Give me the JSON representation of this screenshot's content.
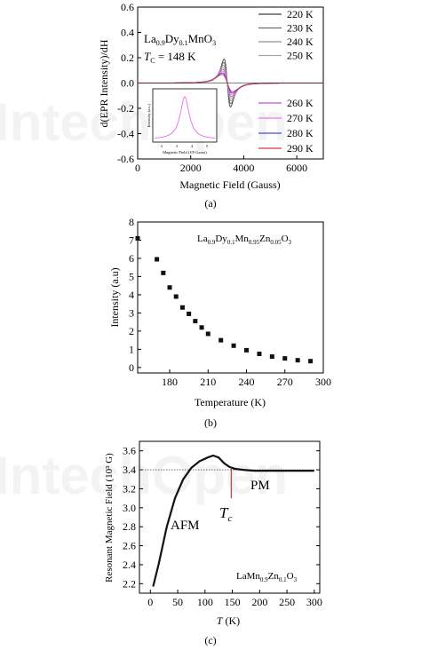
{
  "watermark": "IntechOpen",
  "colors": {
    "spectra": [
      "#404040",
      "#6d6d6d",
      "#8f8f8f",
      "#a8a8a8",
      "#c94fc9",
      "#e87be8",
      "#4a4adf",
      "#d43a3a"
    ],
    "inset": "#ee66ee",
    "markers": "#111111",
    "line": "#111111",
    "ref_line": "#555555",
    "tc_line": "#e03030"
  },
  "panels": {
    "a": {
      "caption": "(a)",
      "compound": {
        "base": "La",
        "sub1": "0.9",
        "mid": "Dy",
        "sub2": "0.1",
        "end": "MnO",
        "sub3": "3"
      },
      "tc_text": {
        "T": "T",
        "sub": "C",
        "rest": " = 148 K"
      },
      "legend_top": [
        "220 K",
        "230 K",
        "240 K",
        "250 K"
      ],
      "legend_bottom": [
        "260 K",
        "270 K",
        "280 K",
        "290 K"
      ],
      "inset": {
        "xlabel": "Magnetic Field (10³ Gauss)",
        "ylabel": "Intensity (a.u.)",
        "xticks": [
          "2",
          "3",
          "4",
          "5"
        ]
      }
    },
    "b": {
      "caption": "(b)",
      "compound": {
        "base": "La",
        "s1": "0.9",
        "e2": "Dy",
        "s2": "0.1",
        "e3": "Mn",
        "s3": "0.95",
        "e4": "Zn",
        "s4": "0.05",
        "e5": "O",
        "s5": "3"
      }
    },
    "c": {
      "caption": "(c)",
      "afm": "AFM",
      "pm": "PM",
      "tc_label": {
        "T": "T",
        "sub": "c"
      },
      "compound": {
        "base": "LaMn",
        "s1": "0.9",
        "e2": "Zn",
        "s2": "0.1",
        "e3": "O",
        "s3": "3"
      },
      "ylabel_units": "(10³ G)"
    }
  },
  "chart_data": [
    {
      "type": "line",
      "title": "",
      "xlabel": "Magnetic Field (Gauss)",
      "ylabel": "d(EPR Intensity)/dH",
      "xlim": [
        0,
        7000
      ],
      "ylim": [
        -0.6,
        0.6
      ],
      "xticks": [
        0,
        2000,
        4000,
        6000
      ],
      "yticks": [
        -0.6,
        -0.4,
        -0.2,
        0.0,
        0.2,
        0.4,
        0.6
      ],
      "legend": "right",
      "center_field": 3380,
      "series": [
        {
          "name": "220 K",
          "peak": 0.5,
          "width": 210
        },
        {
          "name": "230 K",
          "peak": 0.43,
          "width": 230
        },
        {
          "name": "240 K",
          "peak": 0.37,
          "width": 250
        },
        {
          "name": "250 K",
          "peak": 0.32,
          "width": 270
        },
        {
          "name": "260 K",
          "peak": 0.28,
          "width": 290
        },
        {
          "name": "270 K",
          "peak": 0.24,
          "width": 310
        },
        {
          "name": "280 K",
          "peak": 0.21,
          "width": 330
        },
        {
          "name": "290 K",
          "peak": 0.18,
          "width": 350
        }
      ]
    },
    {
      "type": "scatter",
      "title": "",
      "xlabel": "Temperature (K)",
      "ylabel": "Intensity (a.u)",
      "xlim": [
        155,
        300
      ],
      "ylim": [
        -0.3,
        8
      ],
      "xticks": [
        180,
        210,
        240,
        270,
        300
      ],
      "yticks": [
        0,
        1,
        2,
        3,
        4,
        5,
        6,
        7,
        8
      ],
      "x": [
        155,
        170,
        175,
        180,
        185,
        190,
        195,
        200,
        205,
        210,
        220,
        230,
        240,
        250,
        260,
        270,
        280,
        290
      ],
      "y": [
        7.1,
        5.95,
        5.2,
        4.4,
        3.9,
        3.3,
        2.95,
        2.55,
        2.2,
        1.85,
        1.5,
        1.2,
        0.95,
        0.75,
        0.6,
        0.5,
        0.4,
        0.35
      ]
    },
    {
      "type": "line",
      "title": "",
      "xlabel": "T (K)",
      "ylabel": "Resonant Magnetic Field (10³ G)",
      "xlim": [
        -20,
        310
      ],
      "ylim": [
        2.1,
        3.7
      ],
      "xticks": [
        0,
        50,
        100,
        150,
        200,
        250,
        300
      ],
      "yticks": [
        2.2,
        2.4,
        2.6,
        2.8,
        3.0,
        3.2,
        3.4,
        3.6
      ],
      "reference_y": 3.4,
      "tc_x": 148,
      "x": [
        5,
        15,
        30,
        45,
        60,
        75,
        90,
        105,
        115,
        125,
        135,
        145,
        155,
        170,
        190,
        220,
        260,
        300
      ],
      "y": [
        2.17,
        2.4,
        2.8,
        3.1,
        3.3,
        3.42,
        3.49,
        3.53,
        3.55,
        3.53,
        3.47,
        3.43,
        3.41,
        3.4,
        3.39,
        3.39,
        3.39,
        3.39
      ]
    }
  ]
}
